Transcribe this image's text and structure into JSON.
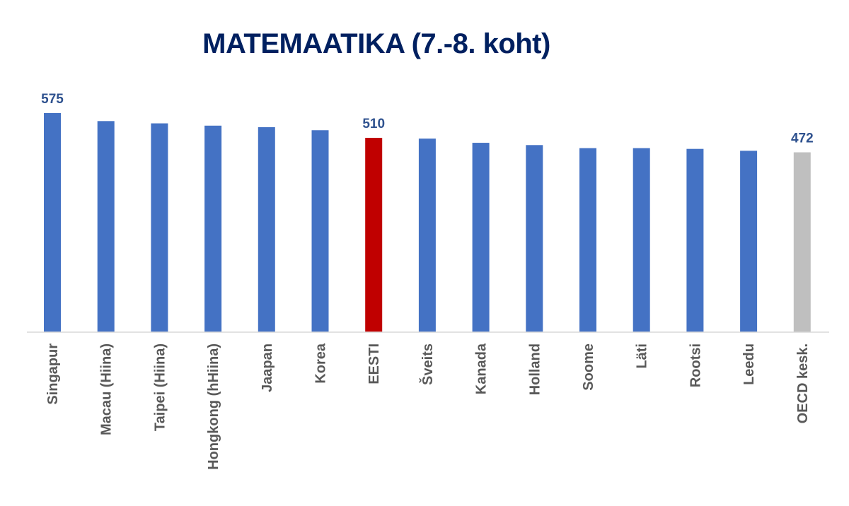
{
  "chart_data": {
    "type": "bar",
    "title": "MATEMAATIKA (7.-8. koht)",
    "categories": [
      "Singapur",
      "Macau (Hiina)",
      "Taipei (Hiina)",
      "Hongkong (hHiina)",
      "Jaapan",
      "Korea",
      "EESTI",
      "Šveits",
      "Kanada",
      "Holland",
      "Soome",
      "Läti",
      "Rootsi",
      "Leedu",
      "OECD kesk."
    ],
    "values": [
      575,
      554,
      548,
      542,
      538,
      530,
      510,
      508,
      497,
      491,
      483,
      483,
      481,
      476,
      472
    ],
    "data_labels": [
      {
        "category": "Singapur",
        "text": "575"
      },
      {
        "category": "EESTI",
        "text": "510"
      },
      {
        "category": "OECD kesk.",
        "text": "472"
      }
    ],
    "xlabel": "",
    "ylabel": "",
    "grid": false,
    "colors": {
      "default": "#4472C4",
      "highlight": "#C00000",
      "average": "#BFBFBF",
      "title": "#002060",
      "data_label": "#2F528F",
      "tick_label": "#595959",
      "axis_line": "#D9D9D9"
    },
    "bar_colors": {
      "EESTI": "highlight",
      "OECD kesk.": "average"
    }
  }
}
